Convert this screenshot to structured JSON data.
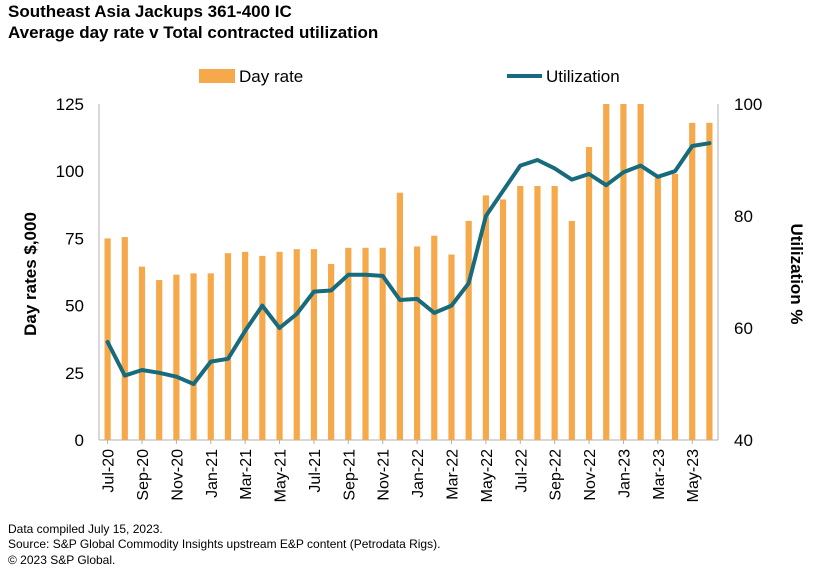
{
  "title": "Southeast Asia Jackups 361-400 IC",
  "subtitle": "Average day rate v Total contracted utilization",
  "footer": {
    "note": "Data compiled July 15, 2023.",
    "source": "Source: S&P Global Commodity Insights upstream E&P content (Petrodata Rigs).",
    "copyright": "© 2023 S&P Global."
  },
  "chart_data": {
    "type": "bar",
    "colors": {
      "bar": "#F5A94B",
      "line": "#176B7C"
    },
    "legend_position": "top",
    "ylabel": "Day rates $,000",
    "y2label": "Utilization %",
    "ylim": [
      0,
      125
    ],
    "y2lim": [
      40,
      100
    ],
    "yticks": [
      0,
      25,
      50,
      75,
      100,
      125
    ],
    "y2ticks": [
      40,
      60,
      80,
      100
    ],
    "categories": [
      "Jul-20",
      "Aug-20",
      "Sep-20",
      "Oct-20",
      "Nov-20",
      "Dec-20",
      "Jan-21",
      "Feb-21",
      "Mar-21",
      "Apr-21",
      "May-21",
      "Jun-21",
      "Jul-21",
      "Aug-21",
      "Sep-21",
      "Oct-21",
      "Nov-21",
      "Dec-21",
      "Jan-22",
      "Feb-22",
      "Mar-22",
      "Apr-22",
      "May-22",
      "Jun-22",
      "Jul-22",
      "Aug-22",
      "Sep-22",
      "Oct-22",
      "Nov-22",
      "Dec-22",
      "Jan-23",
      "Feb-23",
      "Mar-23",
      "Apr-23",
      "May-23",
      "Jun-23"
    ],
    "xtick_labels": [
      "Jul-20",
      "Sep-20",
      "Nov-20",
      "Jan-21",
      "Mar-21",
      "May-21",
      "Jul-21",
      "Sep-21",
      "Nov-21",
      "Jan-22",
      "Mar-22",
      "May-22",
      "Jul-22",
      "Sep-22",
      "Nov-22",
      "Jan-23",
      "Mar-23",
      "May-23"
    ],
    "series": [
      {
        "name": "Day rate",
        "type": "bar",
        "axis": "left",
        "values": [
          75,
          75.5,
          64.5,
          59.5,
          61.5,
          62,
          62,
          69.5,
          70,
          68.5,
          70,
          71,
          71,
          65.5,
          71.5,
          71.5,
          71.5,
          92,
          72,
          76,
          69,
          81.5,
          91,
          89.5,
          94.5,
          94.5,
          94.5,
          81.5,
          109,
          125,
          125,
          125,
          97.5,
          99,
          118,
          118
        ]
      },
      {
        "name": "Utilization",
        "type": "line",
        "axis": "right",
        "values": [
          57.5,
          51.5,
          52.5,
          52,
          51.3,
          50,
          54,
          54.5,
          59.5,
          64,
          60,
          62.5,
          66.5,
          66.7,
          69.5,
          69.5,
          69.3,
          65,
          65.2,
          62.7,
          64,
          68,
          80,
          84.5,
          89,
          90,
          88.5,
          86.5,
          87.5,
          85.5,
          87.8,
          89,
          87,
          88,
          92.5,
          93
        ]
      }
    ]
  }
}
